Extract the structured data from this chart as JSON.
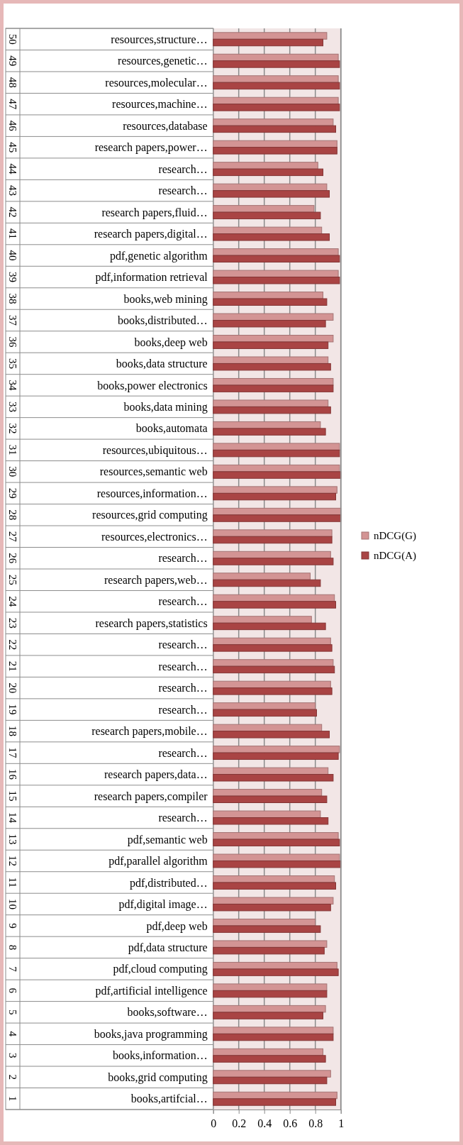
{
  "chart_data": {
    "type": "bar",
    "orientation": "horizontal",
    "categories": [
      "resources,structure…",
      "resources,genetic…",
      "resources,molecular…",
      "resources,machine…",
      "resources,database",
      "research papers,power…",
      "research…",
      "research…",
      "research papers,fluid…",
      "research papers,digital…",
      "pdf,genetic algorithm",
      "pdf,information retrieval",
      "books,web mining",
      "books,distributed…",
      "books,deep web",
      "books,data structure",
      "books,power electronics",
      "books,data mining",
      "books,automata",
      "resources,ubiquitous…",
      "resources,semantic web",
      "resources,information…",
      "resources,grid computing",
      "resources,electronics…",
      "research…",
      "research papers,web…",
      "research…",
      "research papers,statistics",
      "research…",
      "research…",
      "research…",
      "research…",
      "research papers,mobile…",
      "research…",
      "research papers,data…",
      "research papers,compiler",
      "research…",
      "pdf,semantic web",
      "pdf,parallel algorithm",
      "pdf,distributed…",
      "pdf,digital image…",
      "pdf,deep web",
      "pdf,data structure",
      "pdf,cloud computing",
      "pdf,artificial intelligence",
      "books,software…",
      "books,java programming",
      "books,information…",
      "books,grid computing",
      "books,artifcial…"
    ],
    "y_categories": [
      "50",
      "49",
      "48",
      "47",
      "46",
      "45",
      "44",
      "43",
      "42",
      "41",
      "40",
      "39",
      "38",
      "37",
      "36",
      "35",
      "34",
      "33",
      "32",
      "31",
      "30",
      "29",
      "28",
      "27",
      "26",
      "25",
      "24",
      "23",
      "22",
      "21",
      "20",
      "19",
      "18",
      "17",
      "16",
      "15",
      "14",
      "13",
      "12",
      "11",
      "10",
      "9",
      "8",
      "7",
      "6",
      "5",
      "4",
      "3",
      "2",
      "1"
    ],
    "series": [
      {
        "name": "nDCG(G)",
        "color": "#d39494",
        "values": [
          0.89,
          0.98,
          0.98,
          0.98,
          0.94,
          0.97,
          0.82,
          0.89,
          0.79,
          0.85,
          0.98,
          0.98,
          0.86,
          0.94,
          0.94,
          0.9,
          0.94,
          0.9,
          0.84,
          0.99,
          0.99,
          0.97,
          1.0,
          0.93,
          0.92,
          0.76,
          0.95,
          0.77,
          0.92,
          0.94,
          0.92,
          0.8,
          0.85,
          0.99,
          0.9,
          0.85,
          0.84,
          0.98,
          0.99,
          0.95,
          0.94,
          0.8,
          0.89,
          0.97,
          0.89,
          0.88,
          0.94,
          0.86,
          0.92,
          0.97
        ]
      },
      {
        "name": "nDCG(A)",
        "color": "#a94444",
        "values": [
          0.86,
          0.99,
          0.99,
          0.99,
          0.96,
          0.97,
          0.86,
          0.91,
          0.84,
          0.91,
          0.99,
          0.99,
          0.89,
          0.88,
          0.9,
          0.92,
          0.94,
          0.92,
          0.88,
          0.99,
          1.0,
          0.96,
          1.0,
          0.93,
          0.94,
          0.84,
          0.96,
          0.88,
          0.93,
          0.95,
          0.93,
          0.81,
          0.91,
          0.98,
          0.94,
          0.89,
          0.9,
          0.99,
          1.0,
          0.96,
          0.92,
          0.84,
          0.87,
          0.98,
          0.89,
          0.86,
          0.94,
          0.88,
          0.89,
          0.96
        ]
      }
    ],
    "xlim": [
      0,
      1
    ],
    "xticks": [
      0,
      0.2,
      0.4,
      0.6,
      0.8,
      1
    ],
    "grid": "x",
    "legend": "right"
  }
}
